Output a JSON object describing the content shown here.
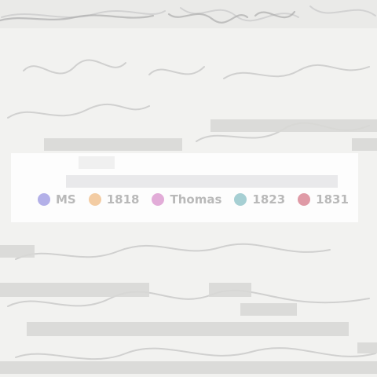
{
  "legend": {
    "items": [
      {
        "label": "MS",
        "color": "#b3b0e8"
      },
      {
        "label": "1818",
        "color": "#f3cca3"
      },
      {
        "label": "Thomas",
        "color": "#e2acd8"
      },
      {
        "label": "1823",
        "color": "#a6cfd3"
      },
      {
        "label": "1831",
        "color": "#df9aa6"
      }
    ]
  }
}
